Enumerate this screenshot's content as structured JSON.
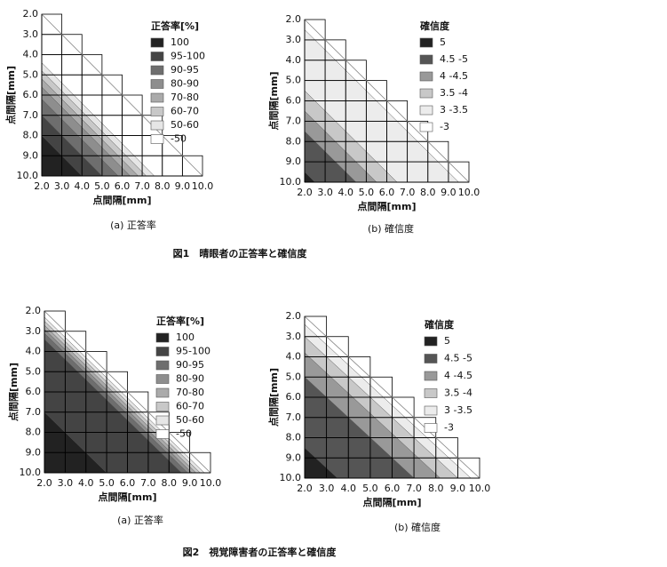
{
  "figures": [
    {
      "caption": "図1　晴眼者の正答率と確信度",
      "panels": [
        {
          "caption": "(a) 正答率",
          "x_label": "点間隔[mm]",
          "y_label": "点間隔[mm]",
          "x_ticks": [
            "2.0",
            "3.0",
            "4.0",
            "5.0",
            "6.0",
            "7.0",
            "8.0",
            "9.0",
            "10.0"
          ],
          "y_ticks": [
            "2.0",
            "3.0",
            "4.0",
            "5.0",
            "6.0",
            "7.0",
            "8.0",
            "9.0",
            "10.0"
          ],
          "legend_title": "正答率[%]",
          "legend": [
            "100",
            "95-100",
            "90-95",
            "80-90",
            "70-80",
            "60-70",
            "50-60",
            "-50"
          ]
        },
        {
          "caption": "(b) 確信度",
          "x_label": "点間隔[mm]",
          "y_label": "点間隔[mm]",
          "x_ticks": [
            "2.0",
            "3.0",
            "4.0",
            "5.0",
            "6.0",
            "7.0",
            "8.0",
            "9.0",
            "10.0"
          ],
          "y_ticks": [
            "2.0",
            "3.0",
            "4.0",
            "5.0",
            "6.0",
            "7.0",
            "8.0",
            "9.0",
            "10.0"
          ],
          "legend_title": "確信度",
          "legend": [
            "5",
            "4.5 -5",
            "4 -4.5",
            "3.5 -4",
            "3 -3.5",
            "-3"
          ]
        }
      ]
    },
    {
      "caption": "図2　視覚障害者の正答率と確信度",
      "panels": [
        {
          "caption": "(a) 正答率",
          "x_label": "点間隔[mm]",
          "y_label": "点間隔[mm]",
          "x_ticks": [
            "2.0",
            "3.0",
            "4.0",
            "5.0",
            "6.0",
            "7.0",
            "8.0",
            "9.0",
            "10.0"
          ],
          "y_ticks": [
            "2.0",
            "3.0",
            "4.0",
            "5.0",
            "6.0",
            "7.0",
            "8.0",
            "9.0",
            "10.0"
          ],
          "legend_title": "正答率[%]",
          "legend": [
            "100",
            "95-100",
            "90-95",
            "80-90",
            "70-80",
            "60-70",
            "50-60",
            "-50"
          ]
        },
        {
          "caption": "(b) 確信度",
          "x_label": "点間隔[mm]",
          "y_label": "点間隔[mm]",
          "x_ticks": [
            "2.0",
            "3.0",
            "4.0",
            "5.0",
            "6.0",
            "7.0",
            "8.0",
            "9.0",
            "10.0"
          ],
          "y_ticks": [
            "2.0",
            "3.0",
            "4.0",
            "5.0",
            "6.0",
            "7.0",
            "8.0",
            "9.0",
            "10.0"
          ],
          "legend_title": "確信度",
          "legend": [
            "5",
            "4.5 -5",
            "4 -4.5",
            "3.5 -4",
            "3 -3.5",
            "-3"
          ]
        }
      ]
    }
  ]
}
